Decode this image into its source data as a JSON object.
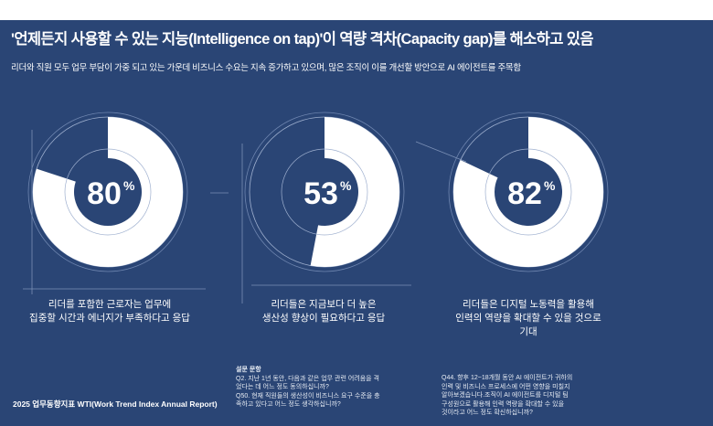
{
  "header": {
    "title": "'언제든지 사용할 수 있는 지능(Intelligence on tap)'이 역량 격차(Capacity gap)를 해소하고 있음",
    "subtitle": "리더와 직원 모두 업무 부담이 가중 되고 있는 가운데 비즈니스 수요는 지속 증가하고 있으며, 많은 조직이 이를 개선할 방안으로 AI 에이전트를 주목함"
  },
  "colors": {
    "background": "#2a4575",
    "fill": "#ffffff"
  },
  "stats": [
    {
      "value": 80,
      "value_text": "80",
      "unit": "%",
      "label_lines": [
        "리더를 포함한 근로자는 업무에",
        "집중할 시간과 에너지가 부족하다고 응답"
      ]
    },
    {
      "value": 53,
      "value_text": "53",
      "unit": "%",
      "label_lines": [
        "리더들은 지금보다 더 높은",
        "생산성 향상이 필요하다고 응답"
      ]
    },
    {
      "value": 82,
      "value_text": "82",
      "unit": "%",
      "label_lines": [
        "리더들은 디지털 노동력을 활용해",
        "인력의 역량을 확대할 수 있을 것으로",
        "기대"
      ]
    }
  ],
  "notes": {
    "heading": "설문 문항",
    "left": [
      "Q2. 지난 1년 동안, 다음과 같은 업무 관련 어려움을 격",
      "었다는 데 어느 정도 동의하십니까?",
      "Q50. 현재 직원들의 생산성이 비즈니스 요구 수준을 충",
      "족하고 있다고 어느 정도 생각하십니까?"
    ],
    "right": [
      "Q44. 향후 12~18개월 동안 AI 에이전트가 귀하의",
      "인력 및 비즈니스 프로세스에 어떤 영향을 미칠지",
      "알아보겠습니다.조직이 AI 에이전트를 디지털 팀",
      "구성원으로 활용해 인력 역량을 확대할 수 있을",
      "것이라고 어느 정도 확신하십니까?"
    ]
  },
  "source": "2025 업무동향지표 WTI(Work Trend Index Annual Report)"
}
